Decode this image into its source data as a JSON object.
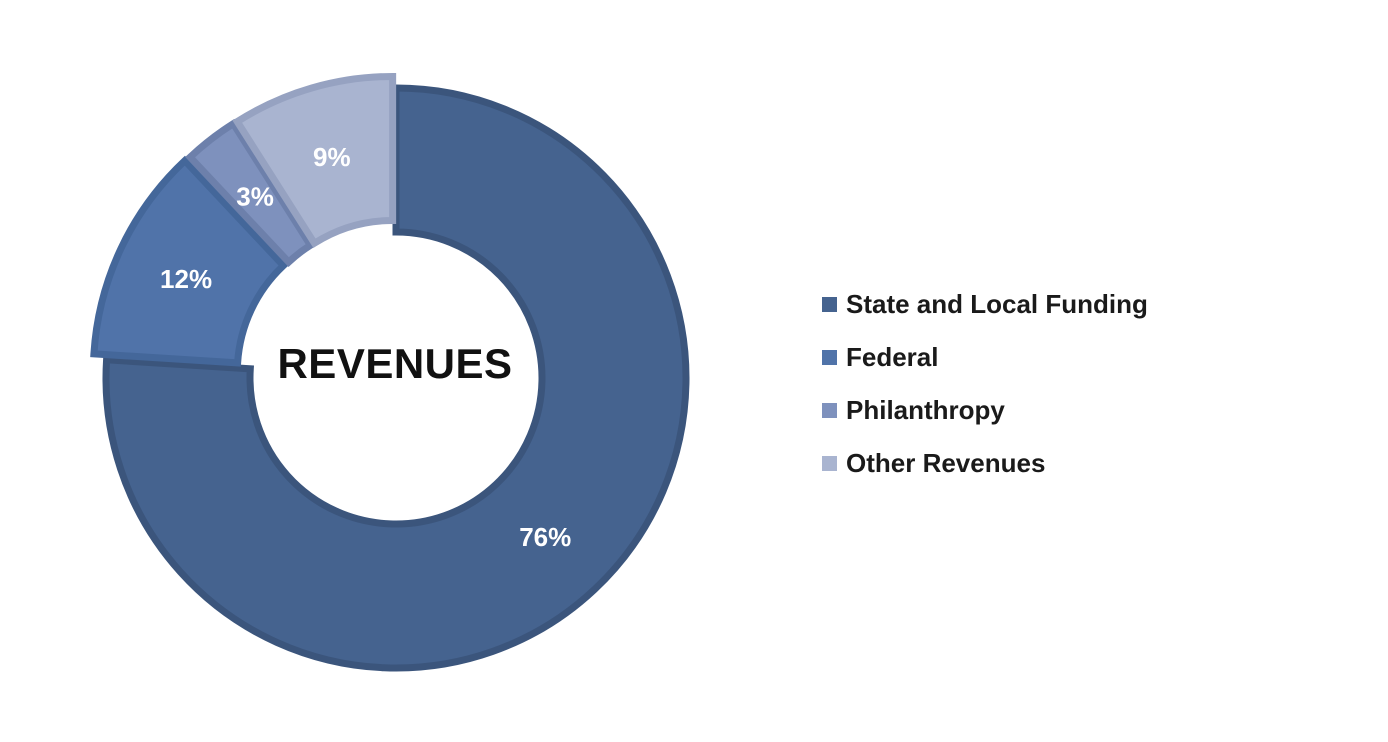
{
  "chart_data": {
    "type": "pie",
    "donut": true,
    "center_label": "REVENUES",
    "categories": [
      "State and Local Funding",
      "Federal",
      "Philanthropy",
      "Other Revenues"
    ],
    "values": [
      76,
      12,
      3,
      9
    ],
    "data_labels": [
      "76%",
      "12%",
      "3%",
      "9%"
    ],
    "colors": [
      "#45638f",
      "#5073a9",
      "#7e91bd",
      "#a9b4d0"
    ],
    "edge_colors": [
      "#3b557c",
      "#44679a",
      "#6d80ab",
      "#96a2c1"
    ],
    "start_angle": "12 o'clock",
    "direction": "clockwise",
    "legend_position": "right"
  }
}
